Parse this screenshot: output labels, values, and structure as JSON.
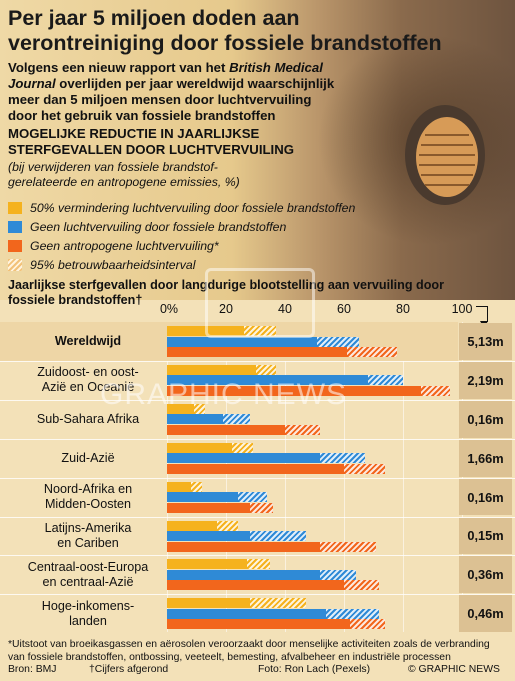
{
  "header": {
    "title": "Per jaar 5 miljoen doden aan verontreiniging door fossiele brandstoffen",
    "intro_pre": "Volgens een nieuw rapport van het ",
    "intro_journal": "British Medical Journal",
    "intro_post": " overlijden per jaar wereldwijd waarschijnlijk meer dan 5 miljoen mensen door luchtvervuiling door het gebruik van fossiele brandstoffen"
  },
  "section": {
    "title": "MOGELIJKE REDUCTIE IN JAARLIJKSE STERFGEVALLEN DOOR LUCHTVERVUILING",
    "note": "(bij verwijderen van fossiele brandstof-gerelateerde en antropogene emissies, %)"
  },
  "legend": [
    {
      "label": "50% vermindering luchtvervuiling door fossiele brandstoffen",
      "color": "#f5b21e"
    },
    {
      "label": "Geen luchtvervuiling door fossiele brandstoffen",
      "color": "#2f8ad6"
    },
    {
      "label": "Geen antropogene luchtvervuiling*",
      "color": "#f2661c"
    },
    {
      "label": "95% betrouwbaarheidsinterval",
      "color": "hatch"
    }
  ],
  "chart_data": {
    "type": "bar",
    "orientation": "horizontal",
    "title": "Jaarlijkse sterfgevallen door langdurige blootstelling aan vervuiling door fossiele brandstoffen†",
    "xlim": [
      0,
      100
    ],
    "x_ticks": [
      "0%",
      "20",
      "40",
      "60",
      "80",
      "100"
    ],
    "categories": [
      "Wereldwijd",
      "Zuidoost- en oost-Azië en Oceanië",
      "Sub-Sahara Afrika",
      "Zuid-Azië",
      "Noord-Afrika en Midden-Oosten",
      "Latijns-Amerika en Cariben",
      "Centraal-oost-Europa en centraal-Azië",
      "Hoge-inkomenslanden"
    ],
    "category_lines": [
      [
        "Wereldwijd"
      ],
      [
        "Zuidoost- en oost-",
        "Azië en Oceanië"
      ],
      [
        "Sub-Sahara Afrika"
      ],
      [
        "Zuid-Azië"
      ],
      [
        "Noord-Afrika en",
        "Midden-Oosten"
      ],
      [
        "Latijns-Amerika",
        "en Cariben"
      ],
      [
        "Centraal-oost-Europa",
        "en centraal-Azië"
      ],
      [
        "Hoge-inkomens-",
        "landen"
      ]
    ],
    "totals": [
      "5,13m",
      "2,19m",
      "0,16m",
      "1,66m",
      "0,16m",
      "0,15m",
      "0,36m",
      "0,46m"
    ],
    "series": [
      {
        "name": "50% vermindering luchtvervuiling door fossiele brandstoffen",
        "color": "#f5b21e",
        "values": [
          31,
          34,
          11,
          25,
          10,
          20,
          31,
          34
        ],
        "ci": [
          [
            26,
            37
          ],
          [
            30,
            37
          ],
          [
            9,
            13
          ],
          [
            22,
            29
          ],
          [
            8,
            12
          ],
          [
            17,
            24
          ],
          [
            27,
            35
          ],
          [
            28,
            47
          ]
        ]
      },
      {
        "name": "Geen luchtvervuiling door fossiele brandstoffen",
        "color": "#2f8ad6",
        "values": [
          56,
          72,
          22,
          57,
          28,
          32,
          56,
          61
        ],
        "ci": [
          [
            51,
            65
          ],
          [
            68,
            80
          ],
          [
            19,
            28
          ],
          [
            52,
            67
          ],
          [
            24,
            34
          ],
          [
            28,
            47
          ],
          [
            52,
            64
          ],
          [
            54,
            72
          ]
        ]
      },
      {
        "name": "Geen antropogene luchtvervuiling*",
        "color": "#f2661c",
        "values": [
          69,
          92,
          46,
          66,
          32,
          62,
          66,
          68
        ],
        "ci": [
          [
            61,
            78
          ],
          [
            86,
            96
          ],
          [
            40,
            52
          ],
          [
            60,
            74
          ],
          [
            28,
            36
          ],
          [
            52,
            71
          ],
          [
            60,
            72
          ],
          [
            62,
            74
          ]
        ]
      }
    ]
  },
  "footer": {
    "note": "*Uitstoot van broeikasgassen en aërosolen veroorzaakt door menselijke activiteiten zoals de verbranding van fossiele brandstoffen, ontbossing, veeteelt, bemesting, afvalbeheer en industriële processen",
    "source": "Bron: BMJ",
    "rounded": "†Cijfers afgerond",
    "photo": "Foto: Ron Lach (Pexels)",
    "copyright": "© GRAPHIC NEWS"
  },
  "watermark": "GRAPHIC NEWS"
}
